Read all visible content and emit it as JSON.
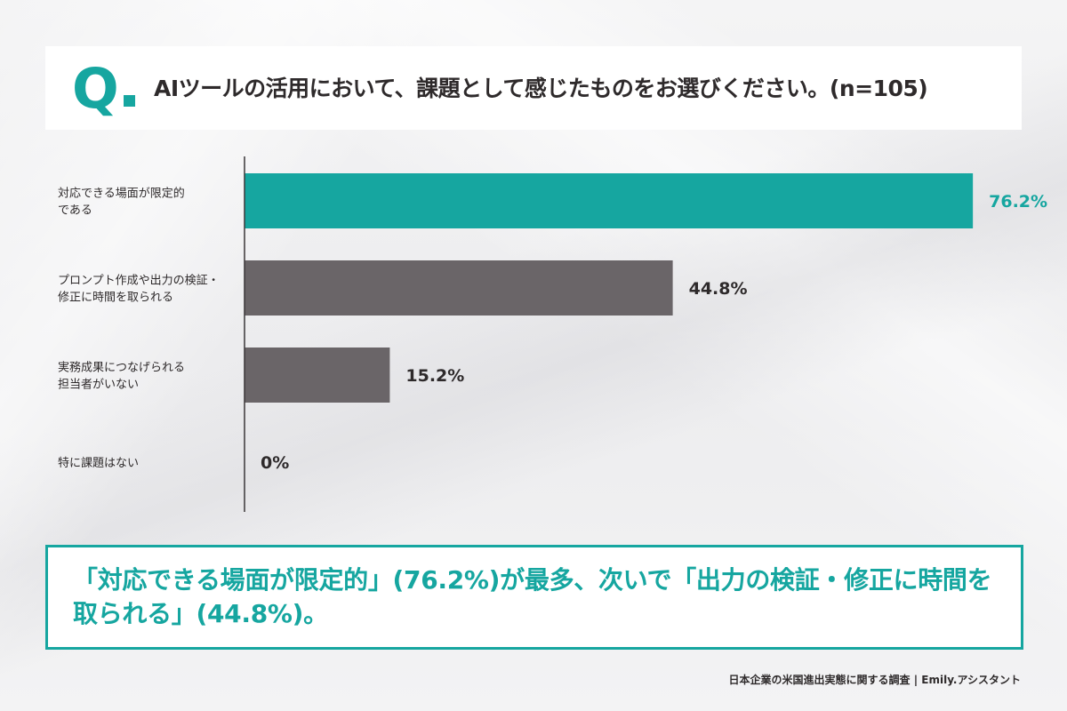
{
  "header": {
    "q_mark": "Q",
    "question": "AIツールの活用において、課題として感じたものをお選びください。(n=105)"
  },
  "chart_data": {
    "type": "bar",
    "orientation": "horizontal",
    "categories": [
      [
        "対応できる場面が限定的",
        "である"
      ],
      [
        "プロンプト作成や出力の検証・",
        "修正に時間を取られる"
      ],
      [
        "実務成果につなげられる",
        "担当者がいない"
      ],
      [
        "特に課題はない"
      ]
    ],
    "values": [
      76.2,
      44.8,
      15.2,
      0
    ],
    "value_labels": [
      "76.2%",
      "44.8%",
      "15.2%",
      "0%"
    ],
    "xlim": [
      0,
      100
    ],
    "unit": "%",
    "colors": {
      "highlight": "#16a6a0",
      "default": "#6a6568",
      "label_default": "#2e2a2b"
    },
    "highlight_index": 0,
    "grid": false,
    "legend": "none"
  },
  "summary": {
    "text": "「対応できる場面が限定的」(76.2%)が最多、次いで「出力の検証・修正に時間を取られる」(44.8%)。"
  },
  "footer": {
    "source": "日本企業の米国進出実態に関する調査 | Emily.アシスタント"
  }
}
